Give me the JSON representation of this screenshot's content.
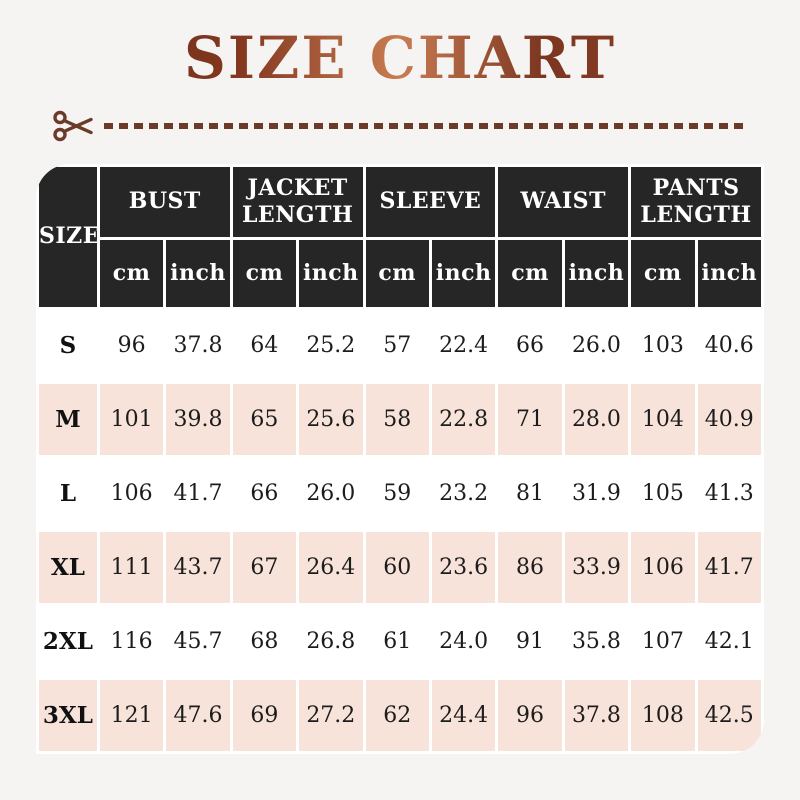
{
  "page": {
    "background": "#f6f4f2"
  },
  "header": {
    "title": "SIZE CHART"
  },
  "theme": {
    "title_gradient": [
      "#5f2a18",
      "#c87c52",
      "#94452a"
    ],
    "cut_line_color": "#6b3a28",
    "table_header_bg": "#262626",
    "table_header_text": "#ffffff",
    "row_white": "#ffffff",
    "row_pink": "#f8e3db",
    "body_text": "#1c1c1c"
  },
  "table": {
    "size_header": "SIZE",
    "groups": {
      "bust": "BUST",
      "jacket": "JACKET LENGTH",
      "sleeve": "SLEEVE",
      "waist": "WAIST",
      "pants": "PANTS LENGTH"
    },
    "units": {
      "cm": "cm",
      "inch": "inch"
    }
  },
  "chart_data": {
    "type": "table",
    "title": "SIZE CHART",
    "columns": [
      "SIZE",
      "BUST cm",
      "BUST inch",
      "JACKET LENGTH cm",
      "JACKET LENGTH inch",
      "SLEEVE cm",
      "SLEEVE inch",
      "WAIST cm",
      "WAIST inch",
      "PANTS LENGTH cm",
      "PANTS LENGTH inch"
    ],
    "rows": [
      {
        "size": "S",
        "values": [
          "96",
          "37.8",
          "64",
          "25.2",
          "57",
          "22.4",
          "66",
          "26.0",
          "103",
          "40.6"
        ]
      },
      {
        "size": "M",
        "values": [
          "101",
          "39.8",
          "65",
          "25.6",
          "58",
          "22.8",
          "71",
          "28.0",
          "104",
          "40.9"
        ]
      },
      {
        "size": "L",
        "values": [
          "106",
          "41.7",
          "66",
          "26.0",
          "59",
          "23.2",
          "81",
          "31.9",
          "105",
          "41.3"
        ]
      },
      {
        "size": "XL",
        "values": [
          "111",
          "43.7",
          "67",
          "26.4",
          "60",
          "23.6",
          "86",
          "33.9",
          "106",
          "41.7"
        ]
      },
      {
        "size": "2XL",
        "values": [
          "116",
          "45.7",
          "68",
          "26.8",
          "61",
          "24.0",
          "91",
          "35.8",
          "107",
          "42.1"
        ]
      },
      {
        "size": "3XL",
        "values": [
          "121",
          "47.6",
          "69",
          "27.2",
          "62",
          "24.4",
          "96",
          "37.8",
          "108",
          "42.5"
        ]
      }
    ]
  }
}
